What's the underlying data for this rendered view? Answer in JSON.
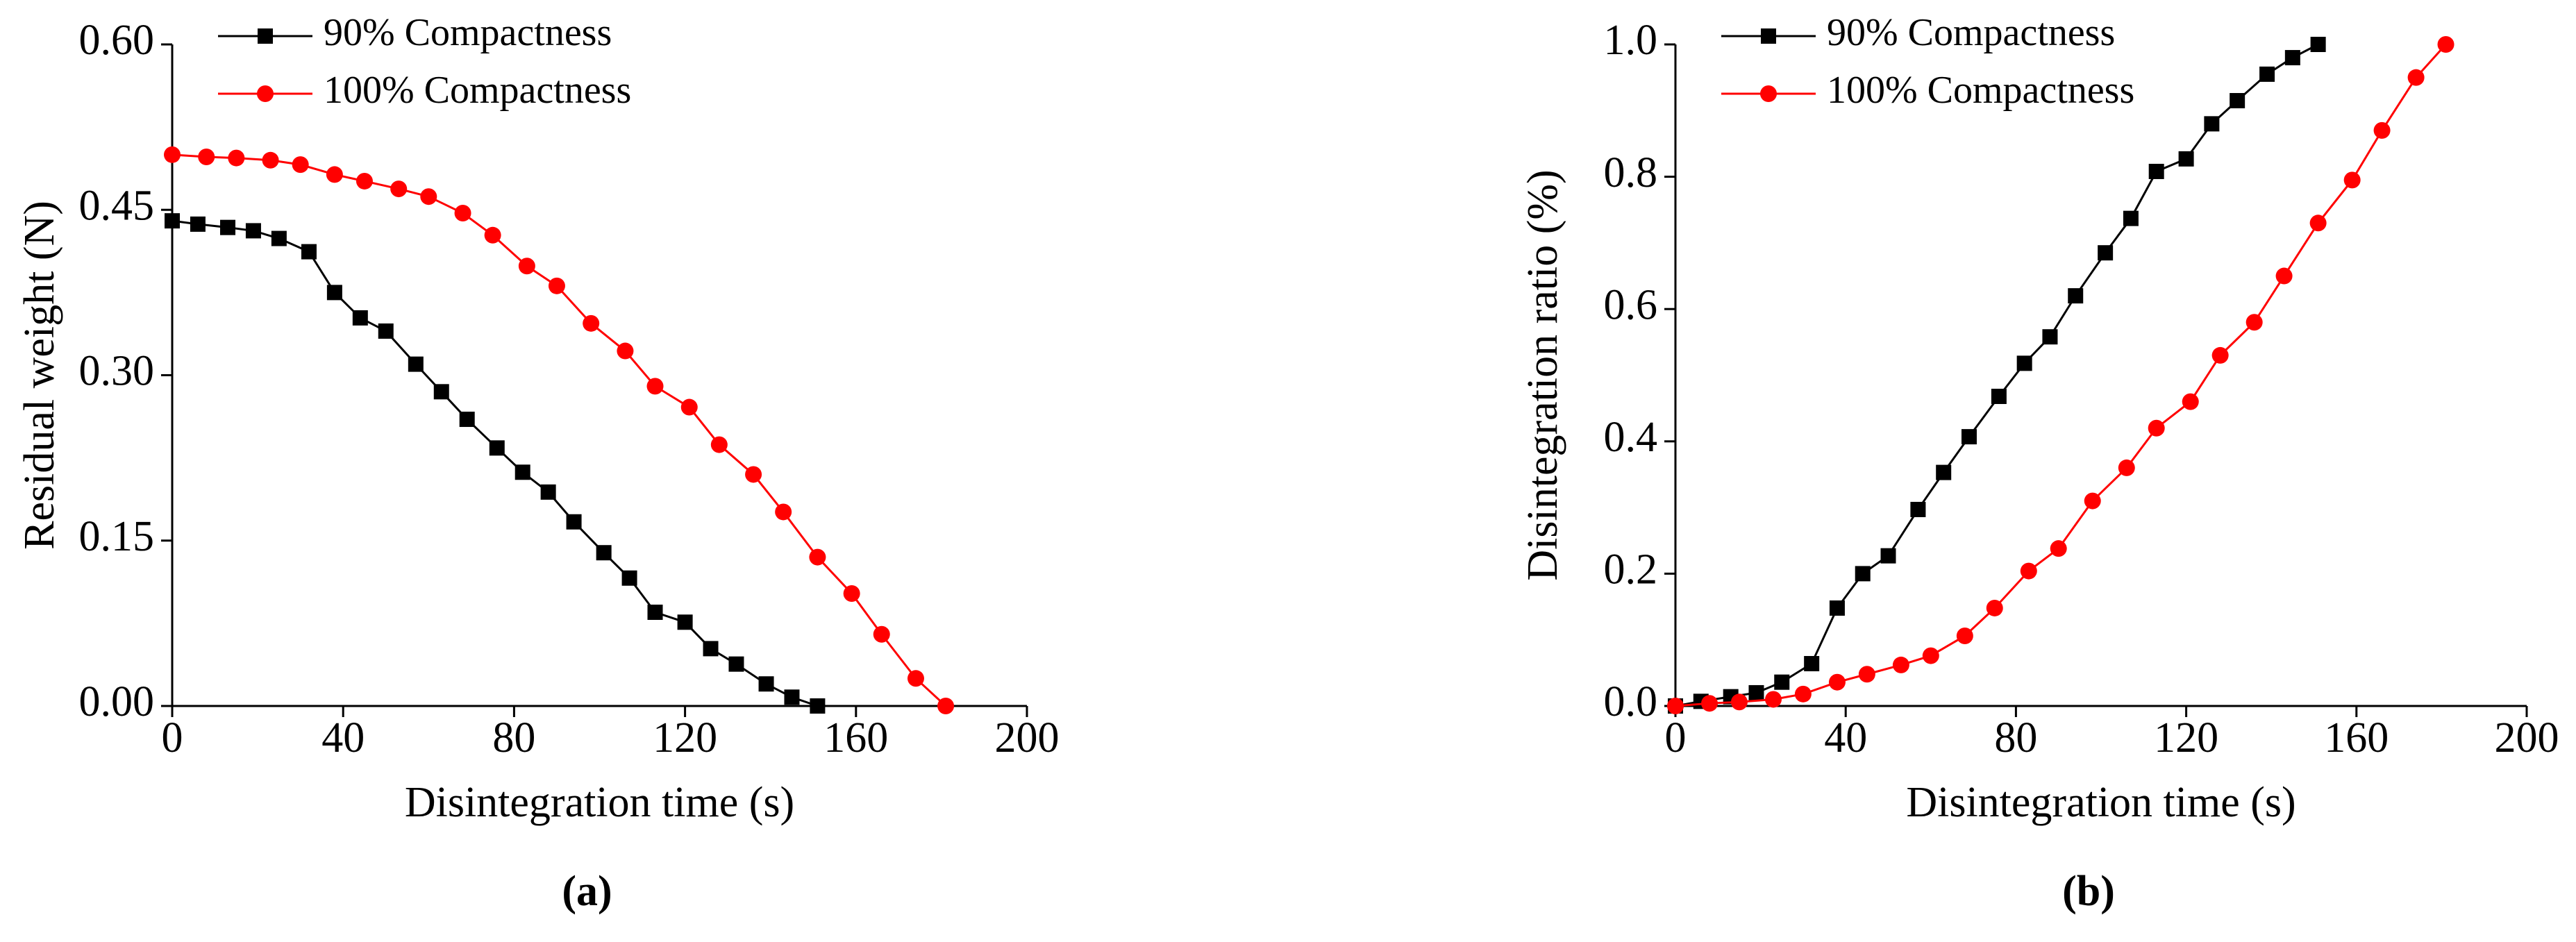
{
  "chart_data": [
    {
      "type": "line",
      "panel_label": "(a)",
      "xlabel": "Disintegration time (s)",
      "ylabel": "Residual weight (N)",
      "xlim": [
        0,
        200
      ],
      "xticks": [
        0,
        40,
        80,
        120,
        160,
        200
      ],
      "ylim": [
        0,
        0.6
      ],
      "yticks": [
        {
          "value": 0,
          "label": "0.00"
        },
        {
          "value": 0.15,
          "label": "0.15"
        },
        {
          "value": 0.3,
          "label": "0.30"
        },
        {
          "value": 0.45,
          "label": "0.45"
        },
        {
          "value": 0.6,
          "label": "0.60"
        }
      ],
      "legend": "upper left",
      "series": [
        {
          "name": "90% Compactness",
          "color": "#000000",
          "marker": "square",
          "x": [
            0,
            6,
            13,
            19,
            25,
            32,
            38,
            44,
            50,
            57,
            63,
            69,
            76,
            82,
            88,
            94,
            101,
            107,
            113,
            120,
            126,
            132,
            139,
            145,
            151
          ],
          "values": [
            0.44,
            0.437,
            0.434,
            0.431,
            0.424,
            0.412,
            0.375,
            0.352,
            0.34,
            0.31,
            0.285,
            0.26,
            0.234,
            0.212,
            0.194,
            0.167,
            0.139,
            0.116,
            0.085,
            0.076,
            0.052,
            0.038,
            0.02,
            0.008,
            0.0
          ]
        },
        {
          "name": "100% Compactness",
          "color": "#ff0000",
          "marker": "circle",
          "x": [
            0,
            8,
            15,
            23,
            30,
            38,
            45,
            53,
            60,
            68,
            75,
            83,
            90,
            98,
            106,
            113,
            121,
            128,
            136,
            143,
            151,
            159,
            166,
            174,
            181
          ],
          "values": [
            0.5,
            0.498,
            0.497,
            0.495,
            0.491,
            0.482,
            0.476,
            0.469,
            0.462,
            0.447,
            0.427,
            0.399,
            0.381,
            0.347,
            0.322,
            0.29,
            0.271,
            0.237,
            0.21,
            0.176,
            0.135,
            0.102,
            0.065,
            0.025,
            0.0
          ]
        }
      ]
    },
    {
      "type": "line",
      "panel_label": "(b)",
      "xlabel": "Disintegration time (s)",
      "ylabel": "Disintegration ratio (%)",
      "xlim": [
        0,
        200
      ],
      "xticks": [
        0,
        40,
        80,
        120,
        160,
        200
      ],
      "ylim": [
        0,
        1
      ],
      "yticks": [
        {
          "value": 0,
          "label": "0.0"
        },
        {
          "value": 0.2,
          "label": "0.2"
        },
        {
          "value": 0.4,
          "label": "0.4"
        },
        {
          "value": 0.6,
          "label": "0.6"
        },
        {
          "value": 0.8,
          "label": "0.8"
        },
        {
          "value": 1,
          "label": "1.0"
        }
      ],
      "legend": "upper left",
      "series": [
        {
          "name": "90% Compactness",
          "color": "#000000",
          "marker": "square",
          "x": [
            0,
            6,
            13,
            19,
            25,
            32,
            38,
            44,
            50,
            57,
            63,
            69,
            76,
            82,
            88,
            94,
            101,
            107,
            113,
            120,
            126,
            132,
            139,
            145,
            151
          ],
          "values": [
            0.0,
            0.007,
            0.014,
            0.02,
            0.036,
            0.064,
            0.148,
            0.2,
            0.227,
            0.297,
            0.353,
            0.407,
            0.468,
            0.518,
            0.558,
            0.62,
            0.685,
            0.737,
            0.808,
            0.827,
            0.88,
            0.915,
            0.955,
            0.98,
            1.0
          ]
        },
        {
          "name": "100% Compactness",
          "color": "#ff0000",
          "marker": "circle",
          "x": [
            0,
            8,
            15,
            23,
            30,
            38,
            45,
            53,
            60,
            68,
            75,
            83,
            90,
            98,
            106,
            113,
            121,
            128,
            136,
            143,
            151,
            159,
            166,
            174,
            181
          ],
          "values": [
            0.0,
            0.004,
            0.006,
            0.01,
            0.018,
            0.036,
            0.048,
            0.062,
            0.076,
            0.106,
            0.148,
            0.204,
            0.238,
            0.31,
            0.36,
            0.42,
            0.46,
            0.53,
            0.58,
            0.65,
            0.73,
            0.795,
            0.87,
            0.95,
            1.0
          ]
        }
      ]
    }
  ]
}
